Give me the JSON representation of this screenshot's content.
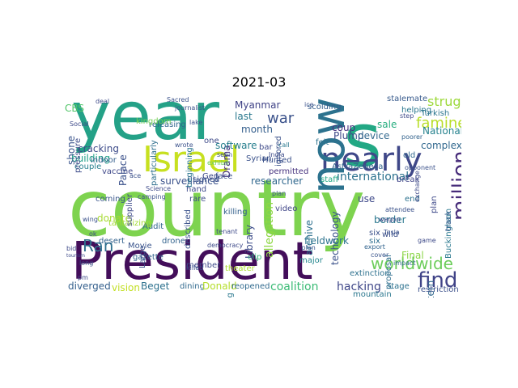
{
  "title": "2021-03",
  "words": [
    {
      "t": "year",
      "c": "#24a187"
    },
    {
      "t": "s",
      "c": "#22a884"
    },
    {
      "t": "country",
      "c": "#7ed34f"
    },
    {
      "t": "President",
      "c": "#430e5a"
    },
    {
      "t": "Israel",
      "c": "#c7e020"
    },
    {
      "t": "nearly",
      "c": "#3f4788"
    },
    {
      "t": "now",
      "c": "#2c728e"
    },
    {
      "t": "war",
      "c": "#3b528b"
    },
    {
      "t": "famine",
      "c": "#b8de29"
    },
    {
      "t": "struggle",
      "c": "#9dd93b"
    },
    {
      "t": "million",
      "c": "#472c7a"
    },
    {
      "t": "worldwide",
      "c": "#6ccd5a"
    },
    {
      "t": "find",
      "c": "#404387"
    },
    {
      "t": "Ran",
      "c": "#2e6f8e"
    },
    {
      "t": "Myanmar",
      "c": "#414487"
    },
    {
      "t": "Drama",
      "c": "#46327e"
    },
    {
      "t": "month",
      "c": "#355f8d"
    },
    {
      "t": "last",
      "c": "#2a788e"
    },
    {
      "t": "software",
      "c": "#277f8e"
    },
    {
      "t": "surveillance",
      "c": "#3b528b"
    },
    {
      "t": "international",
      "c": "#2c728e"
    },
    {
      "t": "researcher",
      "c": "#31688e"
    },
    {
      "t": "technology",
      "c": "#3b528b"
    },
    {
      "t": "coup",
      "c": "#46307e"
    },
    {
      "t": "sale",
      "c": "#28ae80"
    },
    {
      "t": "Plump",
      "c": "#3e4a89"
    },
    {
      "t": "device",
      "c": "#31688e"
    },
    {
      "t": "complex",
      "c": "#31688e"
    },
    {
      "t": "National",
      "c": "#26828e"
    },
    {
      "t": "Western",
      "c": "#31688e"
    },
    {
      "t": "Buckingham",
      "c": "#2a788e"
    },
    {
      "t": "track",
      "c": "#375b8d"
    },
    {
      "t": "cracking",
      "c": "#3e4c8a"
    },
    {
      "t": "building",
      "c": "#1fa088"
    },
    {
      "t": "couple",
      "c": "#27808e"
    },
    {
      "t": "coming",
      "c": "#39568c"
    },
    {
      "t": "donate",
      "c": "#a8db34"
    },
    {
      "t": "desert",
      "c": "#33628d"
    },
    {
      "t": "drone",
      "c": "#33638d"
    },
    {
      "t": "archive",
      "c": "#2d708e"
    },
    {
      "t": "fieldwork",
      "c": "#2c738e"
    },
    {
      "t": "Library",
      "c": "#3d4d8a"
    },
    {
      "t": "allegation",
      "c": "#8fd744"
    },
    {
      "t": "diverged",
      "c": "#35608d"
    },
    {
      "t": "vision",
      "c": "#c2df23"
    },
    {
      "t": "Beget",
      "c": "#2d718e"
    },
    {
      "t": "dining",
      "c": "#30698e"
    },
    {
      "t": "Donald",
      "c": "#b5de2b"
    },
    {
      "t": "reopened",
      "c": "#306a8e"
    },
    {
      "t": "coalition",
      "c": "#3bbb75"
    },
    {
      "t": "hacking",
      "c": "#3f4788"
    },
    {
      "t": "stage",
      "c": "#2c728e"
    },
    {
      "t": "restriction",
      "c": "#3c508b"
    },
    {
      "t": "mountain",
      "c": "#2a778e"
    },
    {
      "t": "Final",
      "c": "#8bd646"
    },
    {
      "t": "extinction",
      "c": "#2d718e"
    },
    {
      "t": "border",
      "c": "#2a778e"
    },
    {
      "t": "wild",
      "c": "#3c4f8a"
    },
    {
      "t": "end",
      "c": "#2c728e"
    },
    {
      "t": "use",
      "c": "#3e4989"
    },
    {
      "t": "major",
      "c": "#24878e"
    },
    {
      "t": "video",
      "c": "#404688"
    },
    {
      "t": "clip",
      "c": "#35b779"
    },
    {
      "t": "Movie",
      "c": "#3a548c"
    },
    {
      "t": "Audit",
      "c": "#32658e"
    },
    {
      "t": "rare",
      "c": "#3e4c8a"
    },
    {
      "t": "stalemate",
      "c": "#375a8c"
    },
    {
      "t": "scolding",
      "c": "#355e8d"
    },
    {
      "t": "helping",
      "c": "#2a778e"
    },
    {
      "t": "Turkish",
      "c": "#2b758e"
    },
    {
      "t": "poorer",
      "c": "#33638d"
    },
    {
      "t": "releasing",
      "c": "#31668e"
    },
    {
      "t": "indoor",
      "c": "#355f8d"
    },
    {
      "t": "vaccine",
      "c": "#3f4889"
    },
    {
      "t": "tantalizing",
      "c": "#a5db36"
    },
    {
      "t": "shone",
      "c": "#3a548c"
    },
    {
      "t": "CBS",
      "c": "#52c569"
    },
    {
      "t": "Hunted",
      "c": "#3b518b"
    },
    {
      "t": "bar",
      "c": "#3e4a89"
    },
    {
      "t": "Syrian",
      "c": "#3b528b"
    },
    {
      "t": "staff",
      "c": "#22a785"
    },
    {
      "t": "permitted",
      "c": "#46327e"
    },
    {
      "t": "gazette",
      "c": "#33638d"
    },
    {
      "t": "member",
      "c": "#3e4a89"
    },
    {
      "t": "theater",
      "c": "#addc30"
    },
    {
      "t": "growing",
      "c": "#2a788e"
    },
    {
      "t": "Palace",
      "c": "#3b518b"
    },
    {
      "t": "kingdom",
      "c": "#75d054"
    },
    {
      "t": "hand",
      "c": "#3e4a89"
    },
    {
      "t": "face",
      "c": "#3b528b"
    },
    {
      "t": "India",
      "c": "#3e4c8a"
    },
    {
      "t": "break",
      "c": "#404588"
    },
    {
      "t": "old",
      "c": "#31688e"
    },
    {
      "t": "plan",
      "c": "#3e4989"
    },
    {
      "t": "proposal",
      "c": "#2e6e8e"
    },
    {
      "t": "six",
      "c": "#2e6d8e"
    },
    {
      "t": "cover",
      "c": "#3a548c"
    },
    {
      "t": "impact",
      "c": "#31678e"
    },
    {
      "t": "export",
      "c": "#32648e"
    },
    {
      "t": "six",
      "c": "#3b528b"
    },
    {
      "t": "Large",
      "c": "#3b528b"
    },
    {
      "t": "described",
      "c": "#3b528b"
    },
    {
      "t": "AstraZeneca",
      "c": "#33638d"
    },
    {
      "t": "pressure",
      "c": "#3e4c8a"
    },
    {
      "t": "particularly",
      "c": "#2e6f8e"
    },
    {
      "t": "beginning",
      "c": "#2a768e"
    },
    {
      "t": "killing",
      "c": "#34618d"
    },
    {
      "t": "signed",
      "c": "#3b528b"
    },
    {
      "t": "wagon",
      "c": "#3e4989"
    },
    {
      "t": "ignored",
      "c": "#3b528b"
    },
    {
      "t": "supplier",
      "c": "#3e4a89"
    },
    {
      "t": "Gen",
      "c": "#3e4a89"
    },
    {
      "t": "ice",
      "c": "#3b528b"
    },
    {
      "t": "felt",
      "c": "#2c738e"
    },
    {
      "t": "one",
      "c": "#3e4a89"
    },
    {
      "t": "wrote",
      "c": "#3b528b"
    },
    {
      "t": "exhibit",
      "c": "#6ccd5a"
    },
    {
      "t": "Science",
      "c": "#3e4a89"
    },
    {
      "t": "seen",
      "c": "#3b528b"
    },
    {
      "t": "call",
      "c": "#2a788e"
    },
    {
      "t": "journalist",
      "c": "#3b528b"
    },
    {
      "t": "plan",
      "c": "#3b528b"
    },
    {
      "t": "deal",
      "c": "#3e4a89"
    },
    {
      "t": "Sacred",
      "c": "#3b528b"
    },
    {
      "t": "step",
      "c": "#3e4989"
    },
    {
      "t": "opponent",
      "c": "#3b528b"
    },
    {
      "t": "Tesla",
      "c": "#3b528b"
    },
    {
      "t": "tourism",
      "c": "#3e4a89"
    },
    {
      "t": "camping",
      "c": "#3b528b"
    },
    {
      "t": "democracy",
      "c": "#3e4a89"
    },
    {
      "t": "long",
      "c": "#3b528b"
    },
    {
      "t": "pm",
      "c": "#3e4989"
    },
    {
      "t": "wing",
      "c": "#3b528b"
    },
    {
      "t": "ok",
      "c": "#3e4989"
    },
    {
      "t": "ace",
      "c": "#3b528b"
    },
    {
      "t": "bid",
      "c": "#3e4a89"
    },
    {
      "t": "lake",
      "c": "#3b528b"
    },
    {
      "t": "Social",
      "c": "#3e4a89"
    },
    {
      "t": "killed",
      "c": "#3b528b"
    },
    {
      "t": "game",
      "c": "#3e4a89"
    },
    {
      "t": "attendee",
      "c": "#3b528b"
    },
    {
      "t": "exchange",
      "c": "#3e4a89"
    },
    {
      "t": "plan",
      "c": "#3b528b"
    },
    {
      "t": "tenant",
      "c": "#3e4a89"
    }
  ]
}
